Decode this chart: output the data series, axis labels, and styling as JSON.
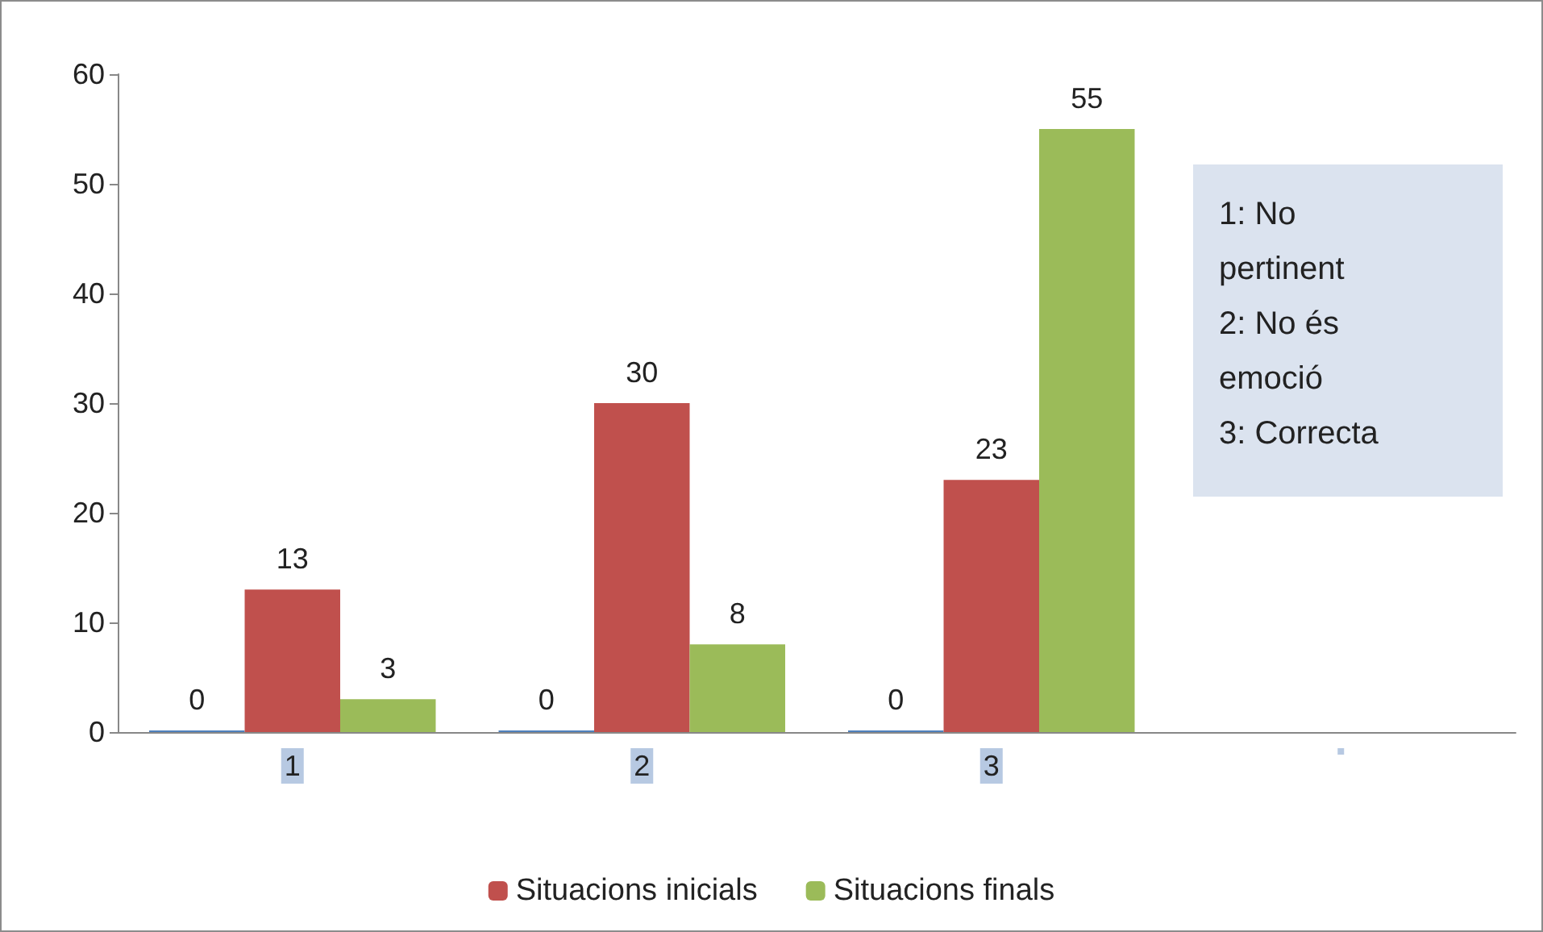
{
  "chart_data": {
    "type": "bar",
    "categories": [
      "1",
      "2",
      "3",
      null
    ],
    "series": [
      {
        "color": "#4f81bd",
        "values": [
          0,
          0,
          0,
          null
        ]
      },
      {
        "name": "Situacions inicials",
        "color": "#c0504d",
        "values": [
          13,
          30,
          23,
          null
        ]
      },
      {
        "name": "Situacions finals",
        "color": "#9bbb59",
        "values": [
          3,
          8,
          55,
          null
        ]
      }
    ],
    "ylim": [
      0,
      60
    ],
    "yticks": [
      0,
      10,
      20,
      30,
      40,
      50,
      60
    ],
    "grid": false,
    "legend": "bottom",
    "data_labels": true,
    "annotations": [
      "1: No pertinent",
      "2: No és emoció",
      "3: Correcta"
    ]
  }
}
